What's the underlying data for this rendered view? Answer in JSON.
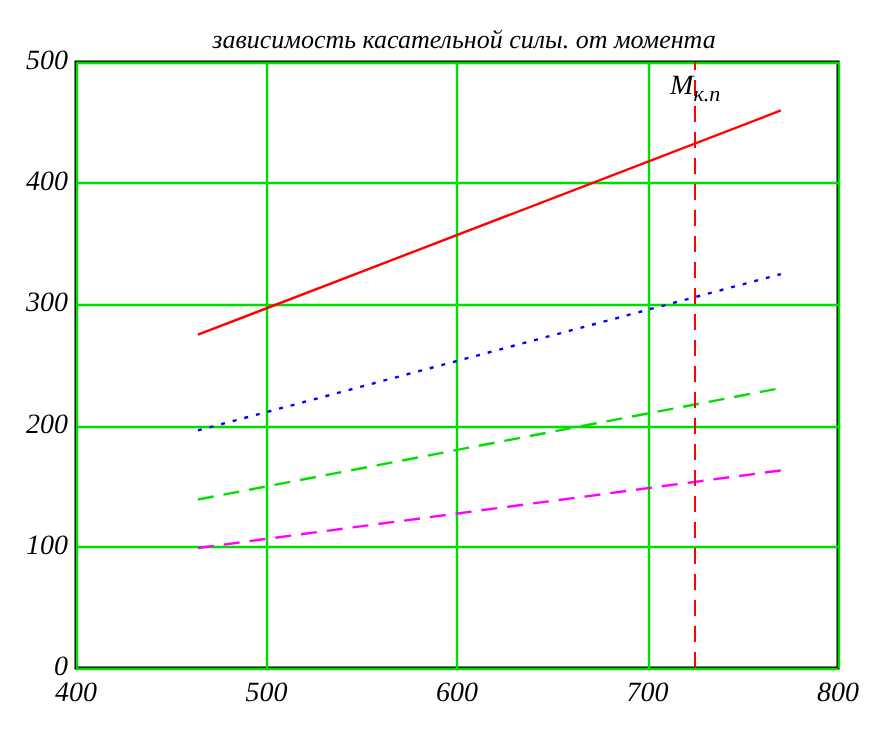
{
  "chart_data": {
    "type": "line",
    "title": "зависимость касательной силы. от момента",
    "x": [
      464,
      770
    ],
    "series": [
      {
        "color": "#ff0000",
        "values": [
          275,
          460
        ],
        "line_style": "solid"
      },
      {
        "color": "#0000ff",
        "values": [
          196,
          325
        ],
        "line_style": "dotted"
      },
      {
        "color": "#00dd00",
        "values": [
          139,
          231
        ],
        "line_style": "dashed"
      },
      {
        "color": "#ff00ff",
        "values": [
          99,
          163
        ],
        "line_style": "dashed"
      }
    ],
    "xlim": [
      400,
      800
    ],
    "xticks": [
      400,
      500,
      600,
      700,
      800
    ],
    "ylim": [
      0,
      500
    ],
    "yticks": [
      0,
      100,
      200,
      300,
      400,
      500
    ],
    "grid": true,
    "marker": "none",
    "ref_lines": [
      {
        "axis": "x",
        "value": 725,
        "label": "M$_{к.п}$",
        "color": "#ff0000",
        "line_style": "dashed"
      }
    ]
  }
}
